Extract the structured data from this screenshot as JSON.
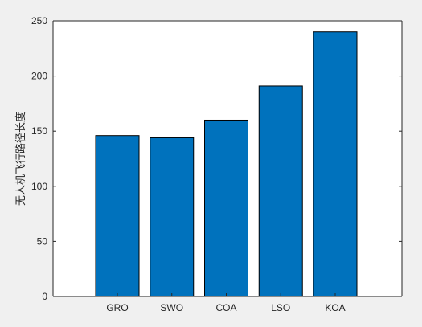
{
  "chart_data": {
    "type": "bar",
    "categories": [
      "GRO",
      "SWO",
      "COA",
      "LSO",
      "KOA"
    ],
    "values": [
      146,
      144,
      160,
      191,
      240
    ],
    "title": "",
    "xlabel": "",
    "ylabel": "无人机飞行路径长度",
    "ylim": [
      0,
      250
    ],
    "yticks": [
      0,
      50,
      100,
      150,
      200,
      250
    ],
    "grid": false,
    "legend": "none",
    "bar_color": "#0072bd",
    "bar_edge_color": "#000000",
    "axes_background": "#ffffff",
    "figure_background": "#f0f0f0"
  }
}
